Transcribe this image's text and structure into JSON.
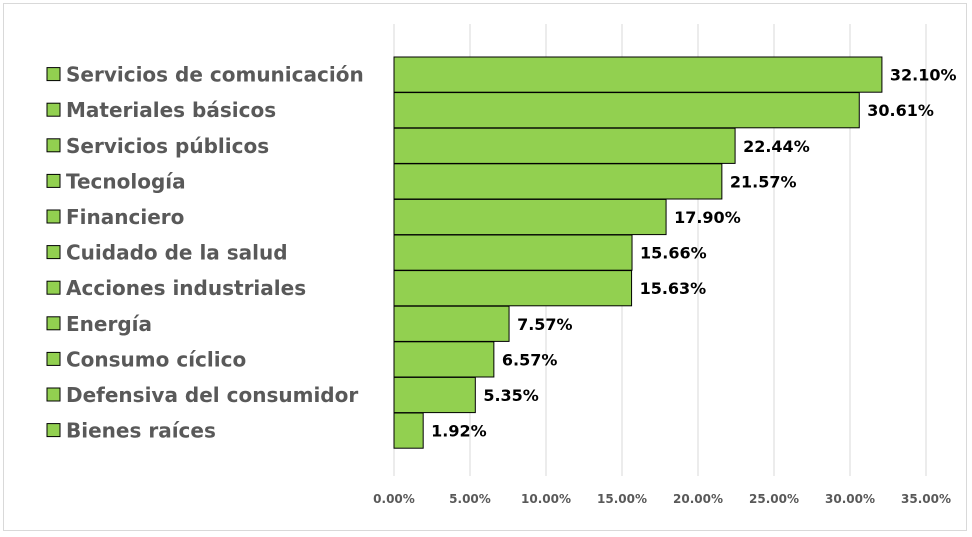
{
  "chart_data": {
    "type": "bar",
    "orientation": "horizontal",
    "categories": [
      "Servicios de comunicación",
      "Materiales básicos",
      "Servicios públicos",
      "Tecnología",
      "Financiero",
      "Cuidado de la salud",
      "Acciones industriales",
      "Energía",
      "Consumo cíclico",
      "Defensiva del consumidor",
      "Bienes raíces"
    ],
    "values": [
      32.1,
      30.61,
      22.44,
      21.57,
      17.9,
      15.66,
      15.63,
      7.57,
      6.57,
      5.35,
      1.92
    ],
    "data_labels": [
      "32.10%",
      "30.61%",
      "22.44%",
      "21.57%",
      "17.90%",
      "15.66%",
      "15.63%",
      "7.57%",
      "6.57%",
      "5.35%",
      "1.92%"
    ],
    "xticks": [
      "0.00%",
      "5.00%",
      "10.00%",
      "15.00%",
      "20.00%",
      "25.00%",
      "30.00%",
      "35.00%"
    ],
    "xlim": [
      0,
      35
    ],
    "xgrid": true,
    "legend_position": "left",
    "title": "",
    "xlabel": "",
    "ylabel": "",
    "colors": {
      "bar_fill": "#92d050",
      "bar_stroke": "#000000",
      "grid": "#d9d9d9",
      "legend_text": "#595959",
      "label_text": "#000000"
    }
  }
}
